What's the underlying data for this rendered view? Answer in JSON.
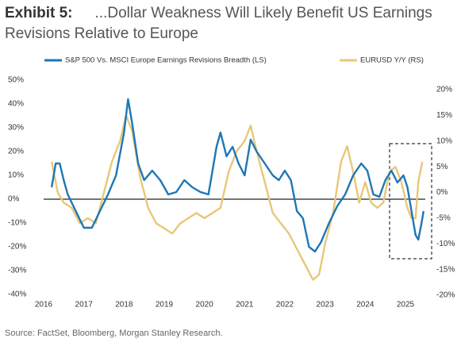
{
  "chart_data": {
    "type": "line",
    "exhibit": "Exhibit 5:",
    "title": "...Dollar Weakness Will Likely Benefit US Earnings Revisions Relative to Europe",
    "source": "Source: FactSet, Bloomberg, Morgan Stanley Research.",
    "xlim": [
      2016,
      2025.6
    ],
    "xticks": [
      2016,
      2017,
      2018,
      2019,
      2020,
      2021,
      2022,
      2023,
      2024,
      2025
    ],
    "ylim": [
      -40,
      50
    ],
    "yticks": [
      {
        "value": -40,
        "label": "-40%"
      },
      {
        "value": -30,
        "label": "-30%"
      },
      {
        "value": -20,
        "label": "-20%"
      },
      {
        "value": -10,
        "label": "-10%"
      },
      {
        "value": 0,
        "label": "0%"
      },
      {
        "value": 10,
        "label": "10%"
      },
      {
        "value": 20,
        "label": "20%"
      },
      {
        "value": 30,
        "label": "30%"
      },
      {
        "value": 40,
        "label": "40%"
      },
      {
        "value": 50,
        "label": "50%"
      }
    ],
    "y2lim": [
      -20,
      20
    ],
    "y2ticks": [
      {
        "value": -20,
        "label": "-20%"
      },
      {
        "value": -15,
        "label": "-15%"
      },
      {
        "value": -10,
        "label": "-10%"
      },
      {
        "value": -5,
        "label": "-5%"
      },
      {
        "value": 0,
        "label": "0%"
      },
      {
        "value": 5,
        "label": "5%"
      },
      {
        "value": 10,
        "label": "10%"
      },
      {
        "value": 15,
        "label": "15%"
      },
      {
        "value": 20,
        "label": "20%"
      }
    ],
    "series": [
      {
        "name": "S&P 500 Vs. MSCI Europe Earnings Revisions Breadth (LS)",
        "color": "#1f77b4",
        "axis": "y",
        "x": [
          2016.2,
          2016.3,
          2016.4,
          2016.5,
          2016.6,
          2016.8,
          2017.0,
          2017.2,
          2017.4,
          2017.6,
          2017.8,
          2018.0,
          2018.1,
          2018.2,
          2018.35,
          2018.5,
          2018.7,
          2018.9,
          2019.1,
          2019.3,
          2019.5,
          2019.7,
          2019.9,
          2020.1,
          2020.3,
          2020.4,
          2020.55,
          2020.7,
          2020.85,
          2021.0,
          2021.15,
          2021.3,
          2021.5,
          2021.7,
          2021.85,
          2022.0,
          2022.15,
          2022.3,
          2022.45,
          2022.6,
          2022.75,
          2022.9,
          2023.1,
          2023.3,
          2023.5,
          2023.7,
          2023.9,
          2024.05,
          2024.2,
          2024.35,
          2024.5,
          2024.65,
          2024.8,
          2024.95,
          2025.05,
          2025.15,
          2025.25,
          2025.32,
          2025.4,
          2025.45
        ],
        "values": [
          5,
          15,
          15,
          8,
          2,
          -5,
          -12,
          -12,
          -5,
          2,
          10,
          28,
          42,
          32,
          15,
          8,
          12,
          8,
          2,
          3,
          8,
          5,
          3,
          2,
          22,
          28,
          18,
          22,
          15,
          10,
          25,
          20,
          15,
          10,
          8,
          12,
          8,
          -5,
          -8,
          -20,
          -22,
          -18,
          -10,
          -3,
          2,
          10,
          15,
          12,
          2,
          1,
          8,
          12,
          7,
          10,
          5,
          -5,
          -15,
          -17,
          -10,
          -5
        ]
      },
      {
        "name": "EURUSD Y/Y (RS)",
        "color": "#e8c77a",
        "axis": "y2",
        "x": [
          2016.2,
          2016.35,
          2016.5,
          2016.7,
          2016.9,
          2017.1,
          2017.3,
          2017.5,
          2017.7,
          2017.9,
          2018.05,
          2018.2,
          2018.4,
          2018.6,
          2018.8,
          2019.0,
          2019.2,
          2019.4,
          2019.6,
          2019.8,
          2020.0,
          2020.2,
          2020.4,
          2020.6,
          2020.8,
          2021.0,
          2021.15,
          2021.3,
          2021.5,
          2021.7,
          2021.9,
          2022.1,
          2022.3,
          2022.5,
          2022.7,
          2022.85,
          2023.0,
          2023.2,
          2023.4,
          2023.55,
          2023.7,
          2023.85,
          2024.0,
          2024.15,
          2024.3,
          2024.45,
          2024.6,
          2024.75,
          2024.9,
          2025.05,
          2025.15,
          2025.25,
          2025.32,
          2025.42
        ],
        "values": [
          6,
          0,
          -2,
          -3,
          -6,
          -5,
          -6,
          0,
          6,
          10,
          15,
          12,
          3,
          -3,
          -6,
          -7,
          -8,
          -6,
          -5,
          -4,
          -5,
          -4,
          -3,
          4,
          8,
          10,
          13,
          8,
          2,
          -4,
          -6,
          -8,
          -11,
          -14,
          -17,
          -16,
          -10,
          -4,
          6,
          9,
          4,
          -2,
          2,
          -2,
          -3,
          -2,
          4,
          5,
          2,
          -3,
          -5,
          -5,
          2,
          6
        ]
      }
    ]
  }
}
